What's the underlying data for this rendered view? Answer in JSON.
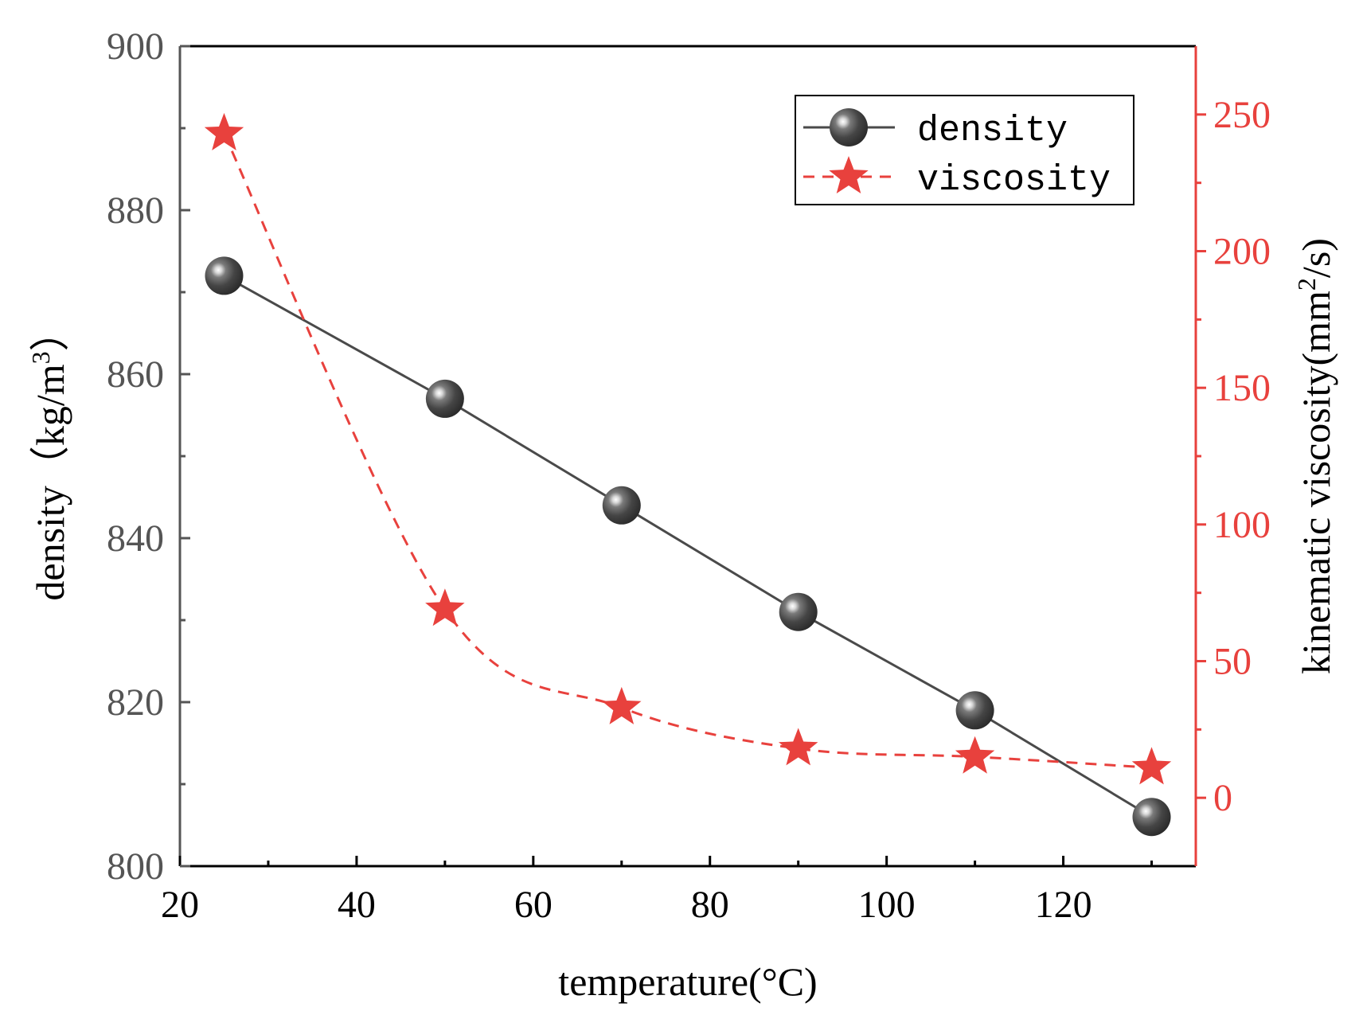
{
  "chart_data": {
    "type": "line",
    "x": [
      25,
      50,
      70,
      90,
      110,
      130
    ],
    "xlabel": "temperature(°C)",
    "xlim": [
      20,
      135
    ],
    "xticks": [
      20,
      40,
      60,
      80,
      100,
      120
    ],
    "xminor": [
      30,
      50,
      70,
      90,
      110,
      130
    ],
    "y_left": {
      "label_main": "density（kg/m",
      "label_sup": "3",
      "label_close": "）",
      "lim": [
        800,
        900
      ],
      "ticks": [
        800,
        820,
        840,
        860,
        880,
        900
      ],
      "minor": [
        810,
        830,
        850,
        870,
        890
      ]
    },
    "y_right": {
      "label_main": "kinematic viscosity(mm",
      "label_sup": "2",
      "label_close": "/s)",
      "lim": [
        -25,
        275
      ],
      "ticks": [
        0,
        50,
        100,
        150,
        200,
        250
      ],
      "minor": [
        25,
        75,
        125,
        175,
        225
      ]
    },
    "series": [
      {
        "name": "density",
        "axis": "left",
        "values": [
          872,
          857,
          844,
          831,
          819,
          806
        ],
        "color": "#4a4a4a",
        "style": "solid",
        "marker": "sphere"
      },
      {
        "name": "viscosity",
        "axis": "right",
        "values": [
          243,
          69,
          33,
          18,
          15,
          11
        ],
        "color": "#e8413d",
        "style": "dashed",
        "marker": "star"
      }
    ],
    "legend": {
      "position": "top-right",
      "entries": [
        "density",
        "viscosity"
      ]
    },
    "grid": false
  }
}
